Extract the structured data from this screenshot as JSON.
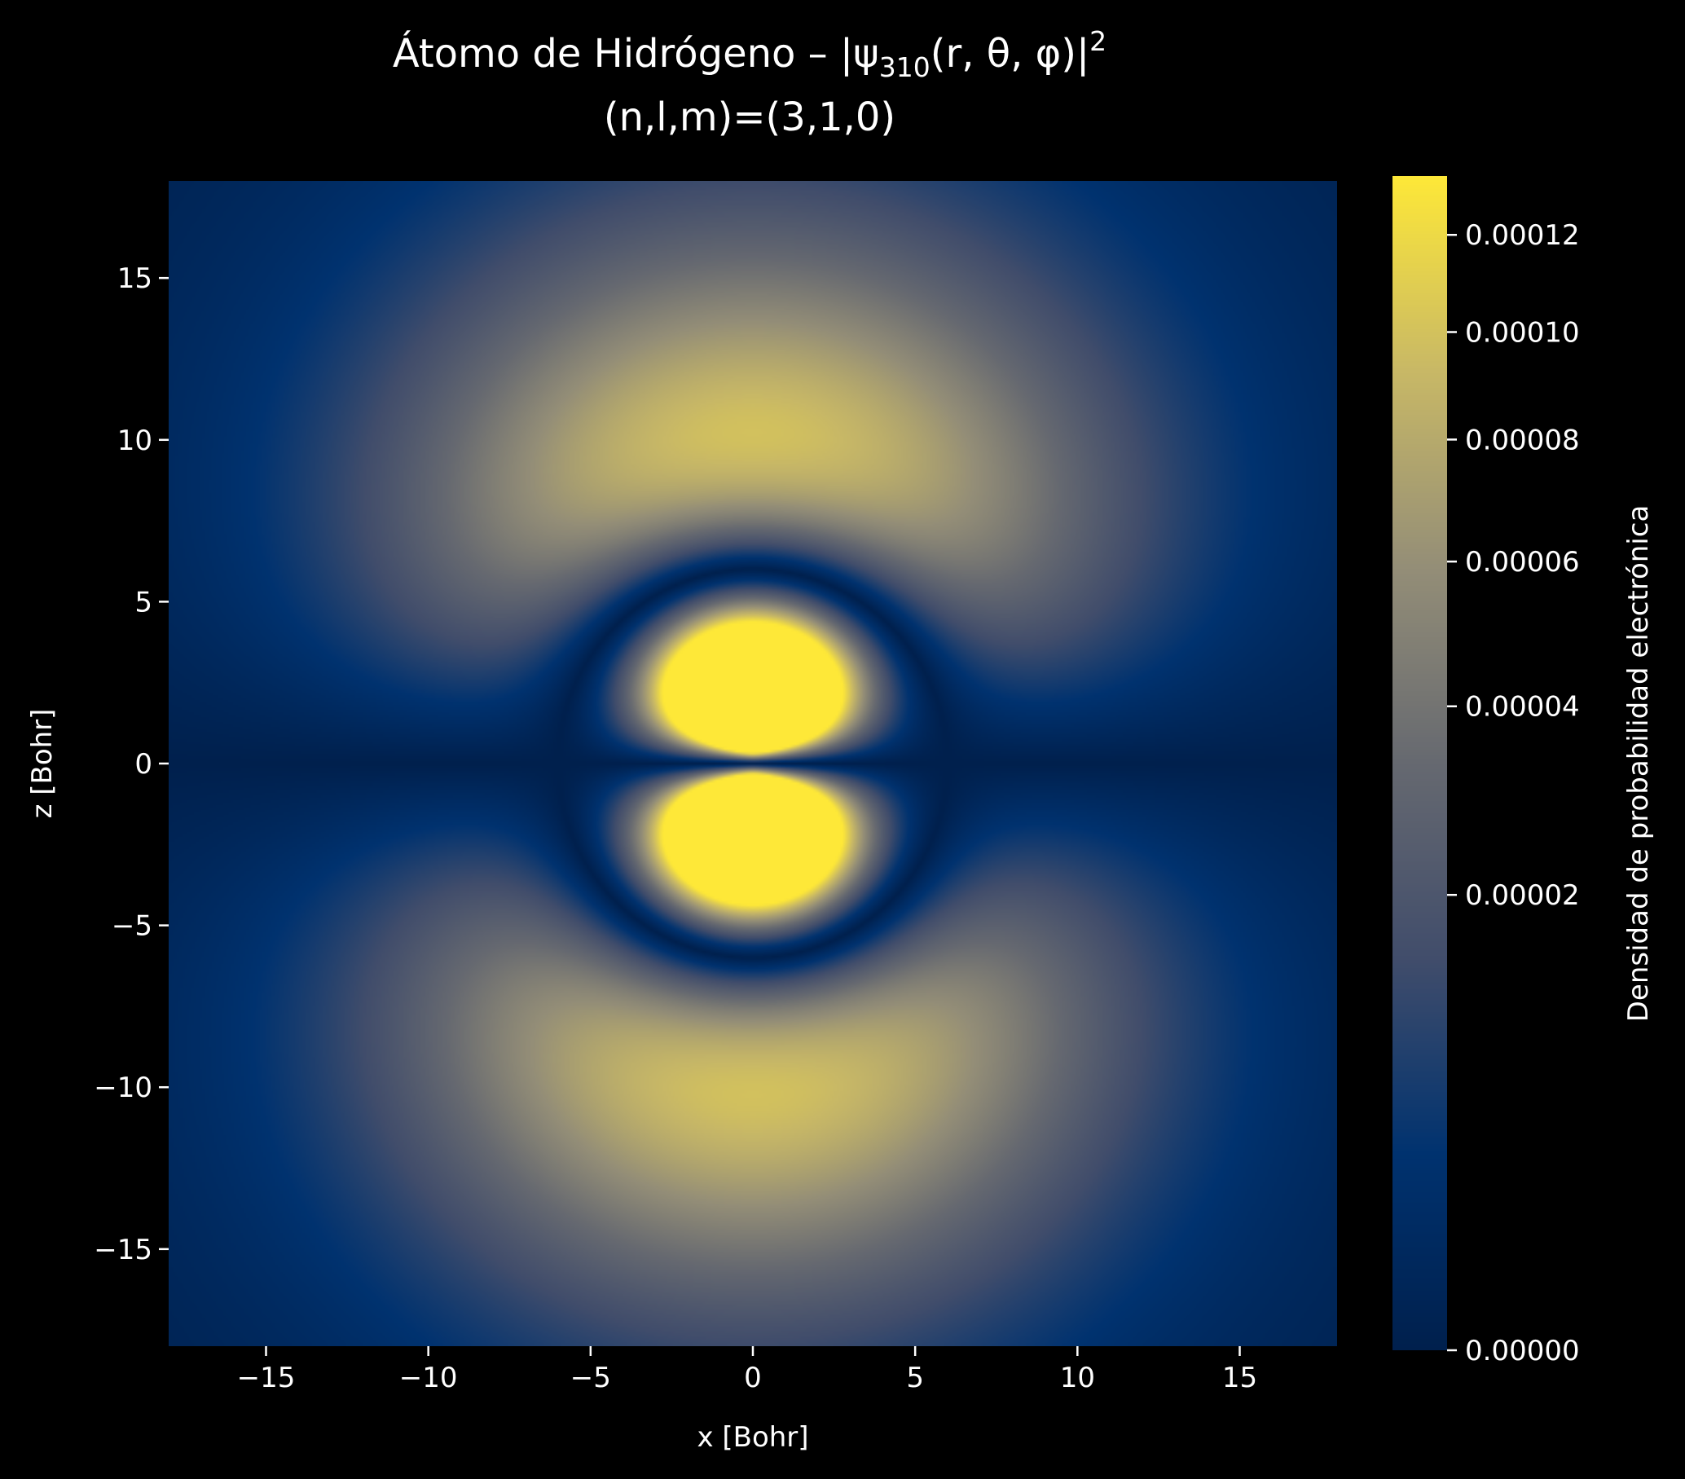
{
  "chart_data": {
    "type": "heatmap",
    "title_prefix": "Átomo de Hidrógeno – |ψ",
    "title_subscript": "310",
    "title_args": "(r, θ, φ)|",
    "title_superscript": "2",
    "subtitle": "(n,l,m)=(3,1,0)",
    "xlabel": "x [Bohr]",
    "ylabel": "z [Bohr]",
    "xlim": [
      -18,
      18
    ],
    "ylim": [
      -18,
      18
    ],
    "xticks": [
      -15,
      -10,
      -5,
      0,
      5,
      10,
      15
    ],
    "yticks": [
      -15,
      -10,
      -5,
      0,
      5,
      10,
      15
    ],
    "xtick_labels": [
      "−15",
      "−10",
      "−5",
      "0",
      "5",
      "10",
      "15"
    ],
    "ytick_labels": [
      "−15",
      "−10",
      "−5",
      "0",
      "5",
      "10",
      "15"
    ],
    "quantum_numbers": {
      "n": 3,
      "l": 1,
      "m": 0
    },
    "density_function": "|psi_310(r,theta,phi)|^2",
    "colorbar": {
      "label": "Densidad de probabilidad electrónica",
      "vmin": 0,
      "vmax": 0.000133,
      "norm": "power",
      "gamma": 0.5,
      "colormap": "cividis",
      "colors": [
        "#00204d",
        "#00326f",
        "#414d6b",
        "#666970",
        "#948e77",
        "#c8b866",
        "#fee838"
      ],
      "ticks": [
        0,
        2e-05,
        4e-05,
        6e-05,
        8e-05,
        0.0001,
        0.00012
      ],
      "tick_labels": [
        "0.00000",
        "0.00002",
        "0.00004",
        "0.00006",
        "0.00008",
        "0.00010",
        "0.00012"
      ]
    },
    "grid": false,
    "background": "#000000",
    "text_color": "#ffffff"
  }
}
